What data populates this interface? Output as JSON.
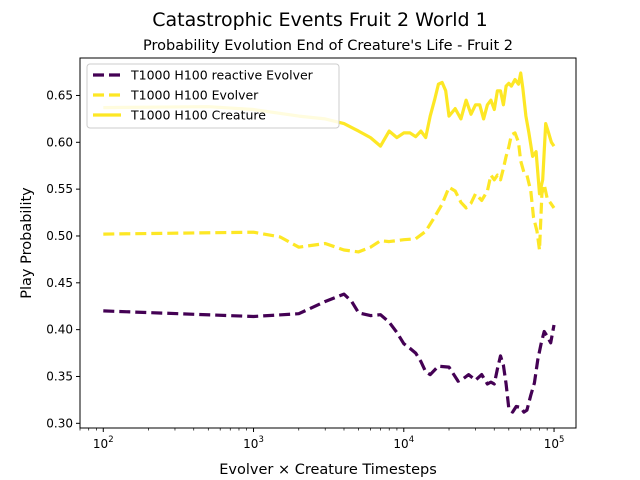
{
  "chart_data": {
    "type": "line",
    "suptitle": "Catastrophic Events Fruit 2 World 1",
    "title": "Probability Evolution End of Creature's Life - Fruit 2",
    "xlabel": "Evolver × Creature Timesteps",
    "ylabel": "Play Probability",
    "xscale": "log",
    "xlim": [
      70,
      140000
    ],
    "ylim": [
      0.295,
      0.69
    ],
    "yticks": [
      0.3,
      0.35,
      0.4,
      0.45,
      0.5,
      0.55,
      0.6,
      0.65
    ],
    "ytick_labels": [
      "0.30",
      "0.35",
      "0.40",
      "0.45",
      "0.50",
      "0.55",
      "0.60",
      "0.65"
    ],
    "xticks": [
      100,
      1000,
      10000,
      100000
    ],
    "xtick_labels": [
      [
        "10",
        "2"
      ],
      [
        "10",
        "3"
      ],
      [
        "10",
        "4"
      ],
      [
        "10",
        "5"
      ]
    ],
    "legend_position": "upper-left",
    "grid": false,
    "series": [
      {
        "name": "T1000 H100 reactive Evolver",
        "color": "#440154",
        "style": "dashed",
        "x": [
          100,
          1000,
          2000,
          3000,
          4000,
          4500,
          5000,
          6000,
          7000,
          8000,
          9000,
          10000,
          11000,
          12000,
          13000,
          14000,
          15000,
          17000,
          20000,
          23000,
          25000,
          27000,
          30000,
          33000,
          36000,
          38000,
          40000,
          42000,
          44000,
          46000,
          48000,
          50000,
          53000,
          56000,
          60000,
          63000,
          66000,
          70000,
          74000,
          78000,
          82000,
          86000,
          90000,
          95000,
          100000
        ],
        "y": [
          0.42,
          0.414,
          0.417,
          0.43,
          0.438,
          0.43,
          0.418,
          0.415,
          0.416,
          0.408,
          0.397,
          0.385,
          0.38,
          0.375,
          0.366,
          0.355,
          0.352,
          0.361,
          0.36,
          0.345,
          0.348,
          0.352,
          0.346,
          0.352,
          0.342,
          0.344,
          0.342,
          0.358,
          0.372,
          0.362,
          0.342,
          0.316,
          0.312,
          0.318,
          0.317,
          0.312,
          0.314,
          0.33,
          0.343,
          0.368,
          0.385,
          0.398,
          0.393,
          0.386,
          0.405
        ]
      },
      {
        "name": "T1000 H100 Evolver",
        "color": "#fde725",
        "style": "dashed",
        "x": [
          100,
          1000,
          1500,
          2000,
          3000,
          4000,
          5000,
          6000,
          7000,
          8000,
          10000,
          12000,
          14000,
          16000,
          18000,
          20000,
          22000,
          24000,
          26000,
          28000,
          30000,
          33000,
          36000,
          38000,
          40000,
          42000,
          44000,
          46000,
          48000,
          50000,
          52000,
          55000,
          58000,
          60000,
          63000,
          66000,
          70000,
          73000,
          77000,
          80000,
          83000,
          86000,
          90000,
          95000,
          100000
        ],
        "y": [
          0.502,
          0.504,
          0.499,
          0.488,
          0.492,
          0.485,
          0.483,
          0.488,
          0.495,
          0.494,
          0.496,
          0.497,
          0.505,
          0.52,
          0.534,
          0.552,
          0.548,
          0.536,
          0.53,
          0.535,
          0.545,
          0.538,
          0.548,
          0.565,
          0.56,
          0.565,
          0.56,
          0.572,
          0.585,
          0.595,
          0.608,
          0.61,
          0.6,
          0.58,
          0.568,
          0.565,
          0.548,
          0.52,
          0.505,
          0.485,
          0.545,
          0.555,
          0.54,
          0.535,
          0.53
        ]
      },
      {
        "name": "T1000 H100 Creature",
        "color": "#fde725",
        "style": "solid",
        "x": [
          100,
          500,
          1000,
          2000,
          3000,
          4000,
          5000,
          6000,
          7000,
          8000,
          9000,
          10000,
          11000,
          12000,
          13000,
          14000,
          15000,
          16000,
          17000,
          18000,
          19000,
          20000,
          22000,
          24000,
          26000,
          28000,
          30000,
          32000,
          34000,
          36000,
          38000,
          40000,
          42000,
          44000,
          46000,
          48000,
          50000,
          52000,
          55000,
          58000,
          60000,
          62000,
          65000,
          68000,
          72000,
          76000,
          80000,
          84000,
          88000,
          92000,
          96000,
          100000
        ],
        "y": [
          0.637,
          0.638,
          0.635,
          0.628,
          0.625,
          0.62,
          0.612,
          0.605,
          0.596,
          0.612,
          0.605,
          0.61,
          0.61,
          0.606,
          0.612,
          0.605,
          0.628,
          0.645,
          0.662,
          0.664,
          0.655,
          0.628,
          0.636,
          0.625,
          0.645,
          0.63,
          0.64,
          0.64,
          0.625,
          0.64,
          0.645,
          0.635,
          0.655,
          0.655,
          0.64,
          0.66,
          0.663,
          0.66,
          0.667,
          0.662,
          0.674,
          0.658,
          0.628,
          0.61,
          0.585,
          0.59,
          0.545,
          0.56,
          0.62,
          0.61,
          0.6,
          0.596
        ]
      }
    ]
  }
}
